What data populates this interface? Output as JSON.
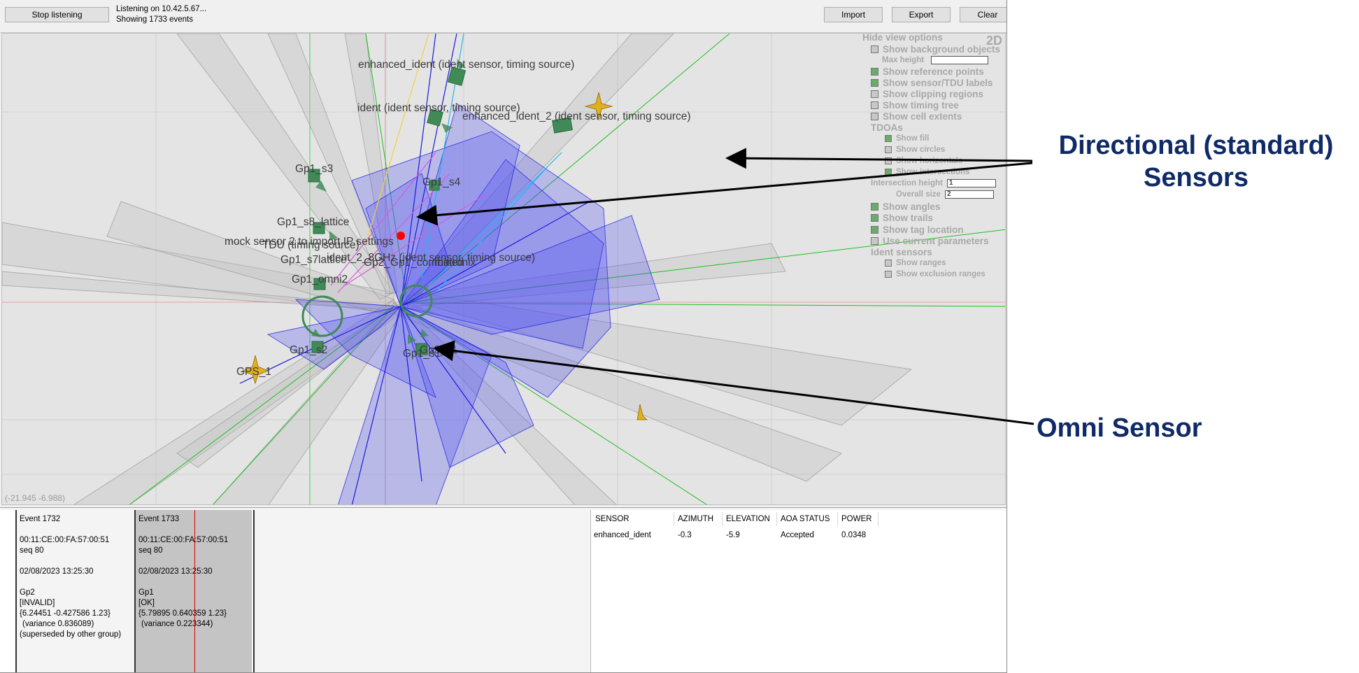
{
  "toolbar": {
    "stop_button": "Stop listening",
    "status_line1": "Listening on 10.42.5.67...",
    "status_line2": "Showing 1733 events",
    "import_button": "Import",
    "export_button": "Export",
    "clear_button": "Clear"
  },
  "view": {
    "mode": "2D",
    "coords": "(-21.945 -6.988)",
    "options": {
      "hide": "Hide view options",
      "bg_objects": "Show background objects",
      "max_height": "Max height",
      "ref_points": "Show reference points",
      "sensor_labels": "Show sensor/TDU labels",
      "clipping": "Show clipping regions",
      "timing_tree": "Show timing tree",
      "cell_extents": "Show cell extents",
      "tdoas": "TDOAs",
      "show_fill": "Show fill",
      "show_circles": "Show circles",
      "show_horizontals": "Show horizontals",
      "show_intersections": "Show intersections",
      "intersection_height": "Intersection height",
      "intersection_height_value": "1",
      "overall_size": "Overall size",
      "overall_size_value": "2",
      "show_angles": "Show angles",
      "show_trails": "Show trails",
      "show_tag_location": "Show tag location",
      "use_current_params": "Use current parameters",
      "ident_sensors": "Ident sensors",
      "show_ranges": "Show ranges",
      "show_exclusion": "Show exclusion ranges"
    },
    "labels": {
      "enhanced_ident": "enhanced_ident (ident sensor, timing source)",
      "ident": "ident (ident sensor, timing source)",
      "enhanced_ident_2": "enhanced_ident_2 (ident sensor, timing source)",
      "gp1_s3": "Gp1_s3",
      "gp1_s4": "Gp1_s4",
      "gp1_s8": "Gp1_s8_lattice",
      "mock": "mock sensor 2 to import IP settings",
      "tdu": "TDU (timing source)",
      "gp1_s7": "Gp1_s7",
      "lattice": "lattice",
      "ident_2_8": "ident_2_8GHz (ident sensor, timing source)",
      "gp2": "Gp2_Gp1_combined",
      "matronix": "matronix",
      "gp1_omni2": "Gp1_omni2",
      "gp1_s2": "Gp1_s2",
      "gp1_s1": "Gp1_s1",
      "gp3_s1": "Gp3_s1",
      "gps_1": "GPS_1"
    }
  },
  "events": [
    {
      "title": "Event 1732",
      "mac": "00:11:CE:00:FA:57:00:51",
      "seq": "seq 80",
      "timestamp": "02/08/2023 13:25:30",
      "group": "Gp2",
      "status": "[INVALID]",
      "position": "{6.24451 -0.427586 1.23}",
      "variance": "(variance 0.836089)",
      "note": "(superseded by other group)"
    },
    {
      "title": "Event 1733",
      "mac": "00:11:CE:00:FA:57:00:51",
      "seq": "seq 80",
      "timestamp": "02/08/2023 13:25:30",
      "group": "Gp1",
      "status": "[OK]",
      "position": "{5.79895 0.640359 1.23}",
      "variance": "(variance 0.223344)"
    }
  ],
  "aoa_table": {
    "headers": [
      "SENSOR",
      "AZIMUTH",
      "ELEVATION",
      "AOA STATUS",
      "POWER"
    ],
    "rows": [
      [
        "enhanced_ident",
        "-0.3",
        "-5.9",
        "Accepted",
        "0.0348"
      ]
    ]
  },
  "annotations": {
    "directional_line1": "Directional (standard)",
    "directional_line2": "Sensors",
    "omni": "Omni Sensor"
  },
  "colors": {
    "annotation_text": "#0f2a66",
    "sensor_green": "#3f8a56",
    "beam_blue": "#2a2af0",
    "tag_red": "#ff0000",
    "gps_gold": "#e0b020"
  }
}
